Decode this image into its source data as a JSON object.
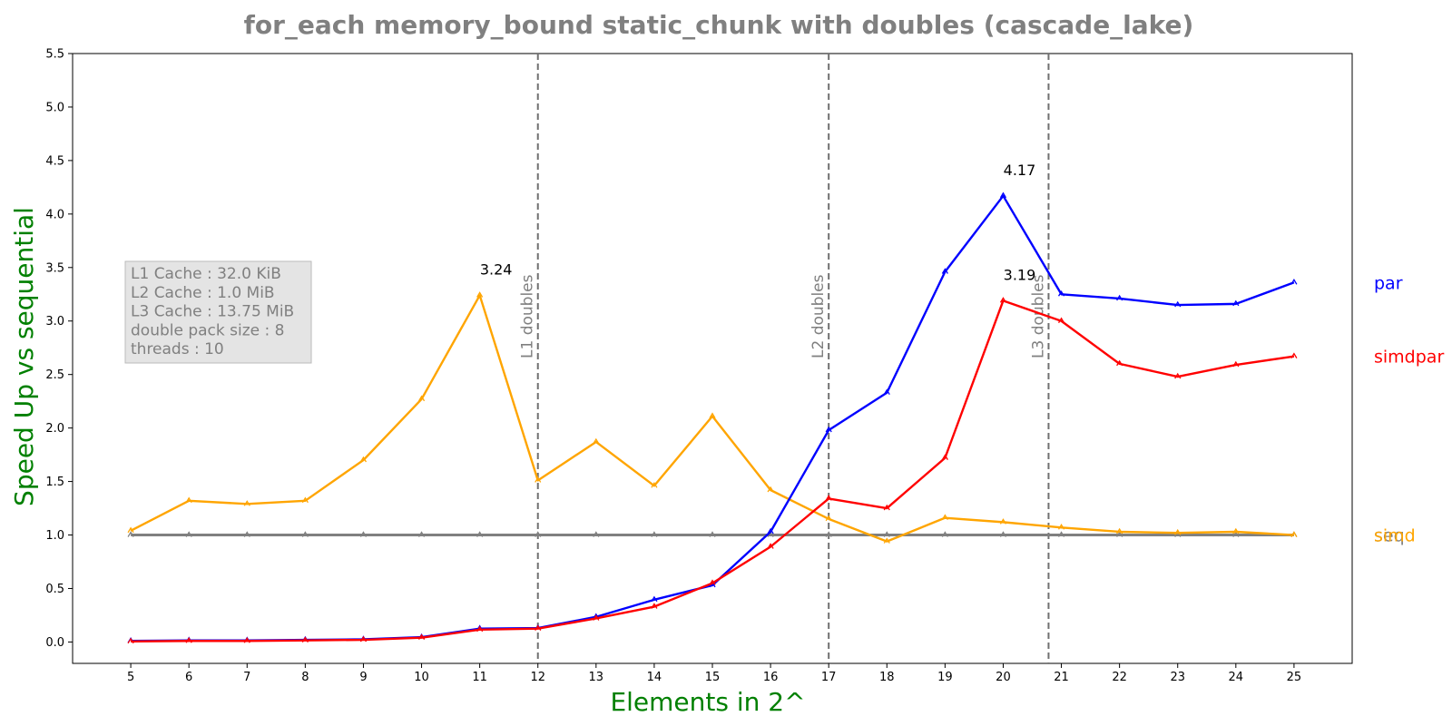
{
  "chart_data": {
    "type": "line",
    "title": "for_each memory_bound static_chunk with doubles  (cascade_lake)",
    "xlabel": "Elements in 2^",
    "ylabel": "Speed Up vs sequential",
    "x": [
      5,
      6,
      7,
      8,
      9,
      10,
      11,
      12,
      13,
      14,
      15,
      16,
      17,
      18,
      19,
      20,
      21,
      22,
      23,
      24,
      25
    ],
    "xlim": [
      4,
      26
    ],
    "ylim": [
      -0.2,
      5.5
    ],
    "yticks": [
      0.0,
      0.5,
      1.0,
      1.5,
      2.0,
      2.5,
      3.0,
      3.5,
      4.0,
      4.5,
      5.0,
      5.5
    ],
    "ytick_labels": [
      "0.0",
      "0.5",
      "1.0",
      "1.5",
      "2.0",
      "2.5",
      "3.0",
      "3.5",
      "4.0",
      "4.5",
      "5.0",
      "5.5"
    ],
    "xtick_labels": [
      "5",
      "6",
      "7",
      "8",
      "9",
      "10",
      "11",
      "12",
      "13",
      "14",
      "15",
      "16",
      "17",
      "18",
      "19",
      "20",
      "21",
      "22",
      "23",
      "24",
      "25"
    ],
    "series": [
      {
        "name": "seq",
        "color": "#808080",
        "values": [
          1.0,
          1.0,
          1.0,
          1.0,
          1.0,
          1.0,
          1.0,
          1.0,
          1.0,
          1.0,
          1.0,
          1.0,
          1.0,
          1.0,
          1.0,
          1.0,
          1.0,
          1.0,
          1.0,
          1.0,
          1.0
        ]
      },
      {
        "name": "simd",
        "color": "#FFA500",
        "values": [
          1.04,
          1.32,
          1.29,
          1.32,
          1.7,
          2.27,
          3.24,
          1.51,
          1.87,
          1.46,
          2.11,
          1.42,
          1.15,
          0.94,
          1.16,
          1.12,
          1.07,
          1.03,
          1.02,
          1.03,
          1.0
        ]
      },
      {
        "name": "par",
        "color": "#0000FF",
        "values": [
          0.01,
          0.015,
          0.015,
          0.02,
          0.025,
          0.045,
          0.125,
          0.13,
          0.235,
          0.395,
          0.53,
          1.03,
          1.98,
          2.33,
          3.46,
          4.17,
          3.25,
          3.21,
          3.15,
          3.16,
          3.36
        ]
      },
      {
        "name": "simdpar",
        "color": "#FF0000",
        "values": [
          0.005,
          0.01,
          0.01,
          0.015,
          0.02,
          0.04,
          0.115,
          0.125,
          0.22,
          0.33,
          0.55,
          0.89,
          1.34,
          1.25,
          1.72,
          3.19,
          3.0,
          2.6,
          2.48,
          2.59,
          2.67
        ]
      }
    ],
    "peak_annotations": [
      {
        "x": 11,
        "y": 3.24,
        "text": "3.24"
      },
      {
        "x": 20,
        "y": 4.17,
        "text": "4.17"
      },
      {
        "x": 20,
        "y": 3.19,
        "text": "3.19"
      }
    ],
    "cache_lines": [
      {
        "x": 12,
        "label": "L1 doubles"
      },
      {
        "x": 17,
        "label": "L2 doubles"
      },
      {
        "x": 20.78,
        "label": "L3 doubles"
      }
    ],
    "info_box": [
      "L1 Cache : 32.0 KiB",
      "L2 Cache : 1.0 MiB",
      "L3 Cache : 13.75 MiB",
      "double pack size : 8",
      "threads : 10"
    ],
    "legend_placement": "right, at end of each series",
    "grid": false
  }
}
